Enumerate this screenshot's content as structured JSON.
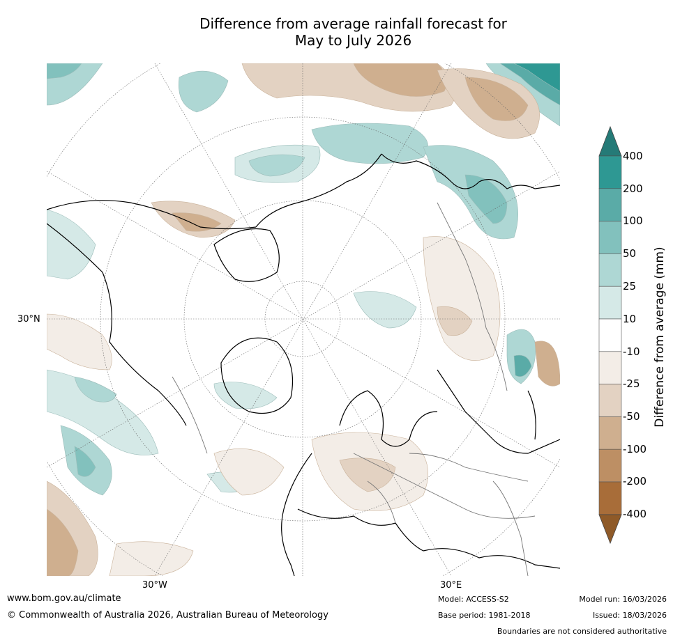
{
  "title_line1": "Difference from average rainfall forecast for",
  "title_line2": "May to July 2026",
  "axis_labels": {
    "lon_west": "30°W",
    "lon_east": "30°E",
    "lat": "30°N"
  },
  "colorbar": {
    "title": "Difference from average (mm)",
    "ticks": [
      "400",
      "200",
      "100",
      "50",
      "25",
      "10",
      "-10",
      "-25",
      "-50",
      "-100",
      "-200",
      "-400"
    ],
    "colors": [
      "#257a77",
      "#2e9893",
      "#5aaba7",
      "#82c1bd",
      "#aed7d4",
      "#d5e9e7",
      "#ffffff",
      "#f3ede7",
      "#e3d2c2",
      "#cfaf8f",
      "#bd8f64",
      "#a86d39",
      "#8f5a28"
    ]
  },
  "footer": {
    "website": "www.bom.gov.au/climate",
    "copyright": "© Commonwealth of Australia 2026, Australian Bureau of Meteorology",
    "model": "Model: ACCESS-S2",
    "base_period": "Base period: 1981-2018",
    "model_run": "Model run: 16/03/2026",
    "issued": "Issued: 18/03/2026",
    "disclaimer": "Boundaries are not considered authoritative"
  }
}
